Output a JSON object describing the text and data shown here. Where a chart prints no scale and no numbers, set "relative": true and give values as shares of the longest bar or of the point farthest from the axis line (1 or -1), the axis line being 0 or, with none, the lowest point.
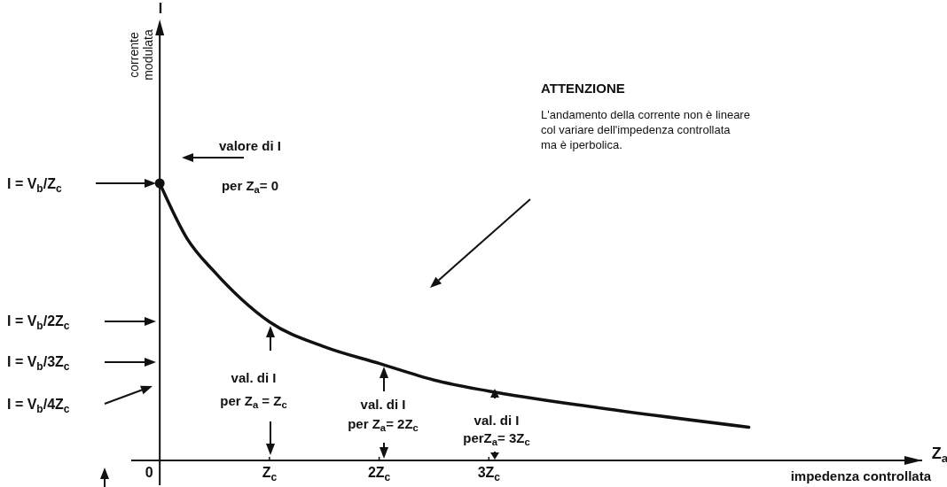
{
  "chart_data": {
    "type": "line",
    "relative": true,
    "title": "ATTENZIONE",
    "subtitle": "L'andamento della corrente non è lineare\ncol variare dell'impedenza controllata\nma è iperbolica.",
    "xlabel": "Z$_{a}$",
    "x": [
      0,
      0.25,
      0.5,
      0.75,
      1,
      1.5,
      2,
      2.5,
      3,
      4,
      5.37
    ],
    "series": [
      {
        "color": "#111111",
        "values": [
          1,
          0.8,
          0.68,
          0.58,
          0.5,
          0.41,
          0.35,
          0.29,
          0.25,
          0.19,
          0.12
        ]
      },
      {
        "type": "scatter",
        "x": [
          0
        ],
        "marker": "circle",
        "color": "#111111",
        "values": [
          1
        ]
      }
    ],
    "xlim": [
      -0.26,
      6.95
    ],
    "xticks": [
      0,
      {
        "value": 1,
        "label": "Z$_{c}$"
      },
      {
        "value": 2,
        "label": "2Z$_{c}$"
      },
      {
        "value": 3,
        "label": "3Z$_{c}$"
      }
    ],
    "marker": "none",
    "line_style": "solid",
    "annotations": [
      "valore di I\nper Z$_{a}$= 0",
      "val. di I\nper Z$_{a}$ = Z$_{c}$",
      "val. di I\nper Z$_{a}$= 2Z$_{c}$",
      "val. di I\nperZ$_{a}$= 3Z$_{c}$",
      "I = V$_{b}$/Z$_{c}$",
      "I = V$_{b}$/2Z$_{c}$",
      "I = V$_{b}$/3Z$_{c}$",
      "I = V$_{b}$/4Z$_{c}$",
      "corrente\nmodulata",
      "impedenza controllata",
      "I"
    ]
  }
}
